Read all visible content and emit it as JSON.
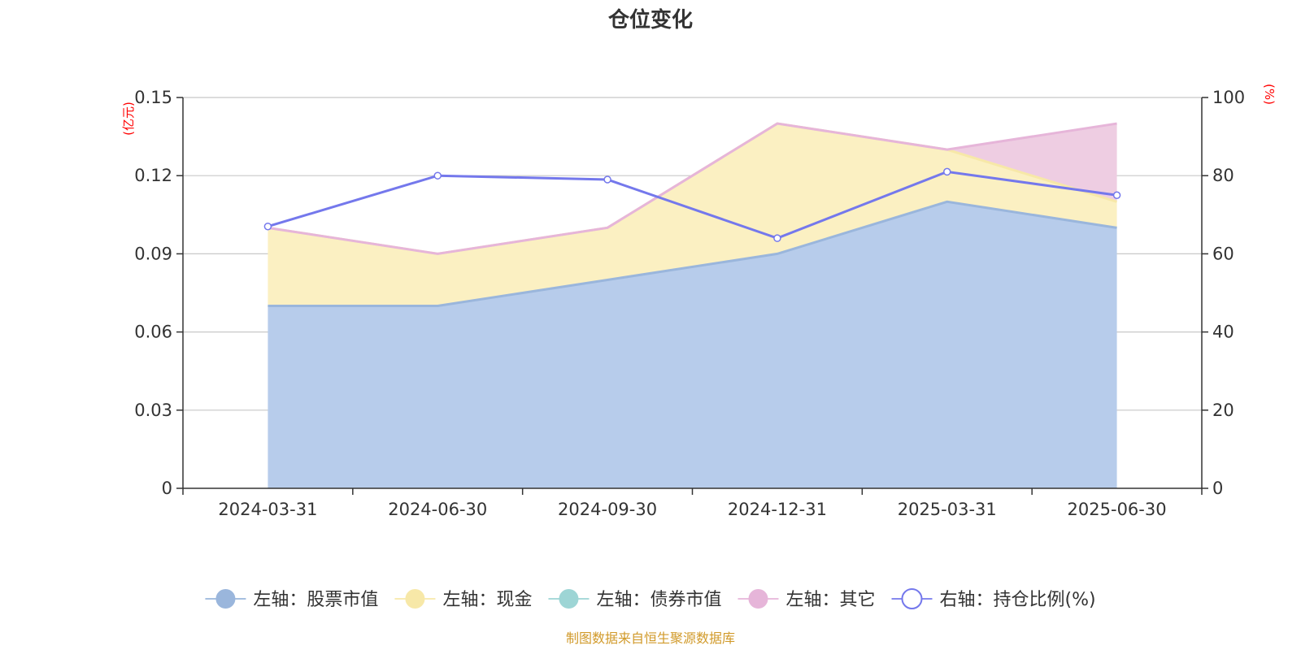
{
  "chart_data": {
    "type": "area",
    "title": "仓位变化",
    "categories": [
      "2024-03-31",
      "2024-06-30",
      "2024-09-30",
      "2024-12-31",
      "2025-03-31",
      "2025-06-30"
    ],
    "left_axis": {
      "unit": "(亿元)",
      "ylim": [
        0,
        0.15
      ],
      "ticks": [
        "0",
        "0.03",
        "0.06",
        "0.09",
        "0.12",
        "0.15"
      ],
      "tick_values": [
        0,
        0.03,
        0.06,
        0.09,
        0.12,
        0.15
      ]
    },
    "right_axis": {
      "unit": "(%)",
      "ylim": [
        0,
        100
      ],
      "ticks": [
        "0",
        "20",
        "40",
        "60",
        "80",
        "100"
      ],
      "tick_values": [
        0,
        20,
        40,
        60,
        80,
        100
      ]
    },
    "grid": true,
    "legend_position": "bottom",
    "series": [
      {
        "name": "左轴：股票市值",
        "axis": "left",
        "stacked": true,
        "values": [
          0.07,
          0.07,
          0.08,
          0.09,
          0.11,
          0.1
        ],
        "line_color": "#9ab6dc",
        "fill_color": "#b7cceb"
      },
      {
        "name": "左轴：现金",
        "axis": "left",
        "stacked": true,
        "values": [
          0.03,
          0.02,
          0.02,
          0.05,
          0.02,
          0.01
        ],
        "line_color": "#f7e8a8",
        "fill_color": "#fbf0c2"
      },
      {
        "name": "左轴：债券市值",
        "axis": "left",
        "stacked": true,
        "values": [
          0,
          0,
          0,
          0,
          0,
          0
        ],
        "line_color": "#9dd5d5",
        "fill_color": "#9dd5d5"
      },
      {
        "name": "左轴：其它",
        "axis": "left",
        "stacked": true,
        "values": [
          0,
          0,
          0,
          0,
          0,
          0.03
        ],
        "line_color": "#e6b5d9",
        "fill_color": "#eecde2"
      },
      {
        "name": "右轴：持仓比例(%)",
        "axis": "right",
        "type": "line",
        "values": [
          67,
          80,
          79,
          64,
          81,
          75
        ],
        "line_color": "#7478ec"
      }
    ],
    "source": "制图数据来自恒生聚源数据库"
  }
}
